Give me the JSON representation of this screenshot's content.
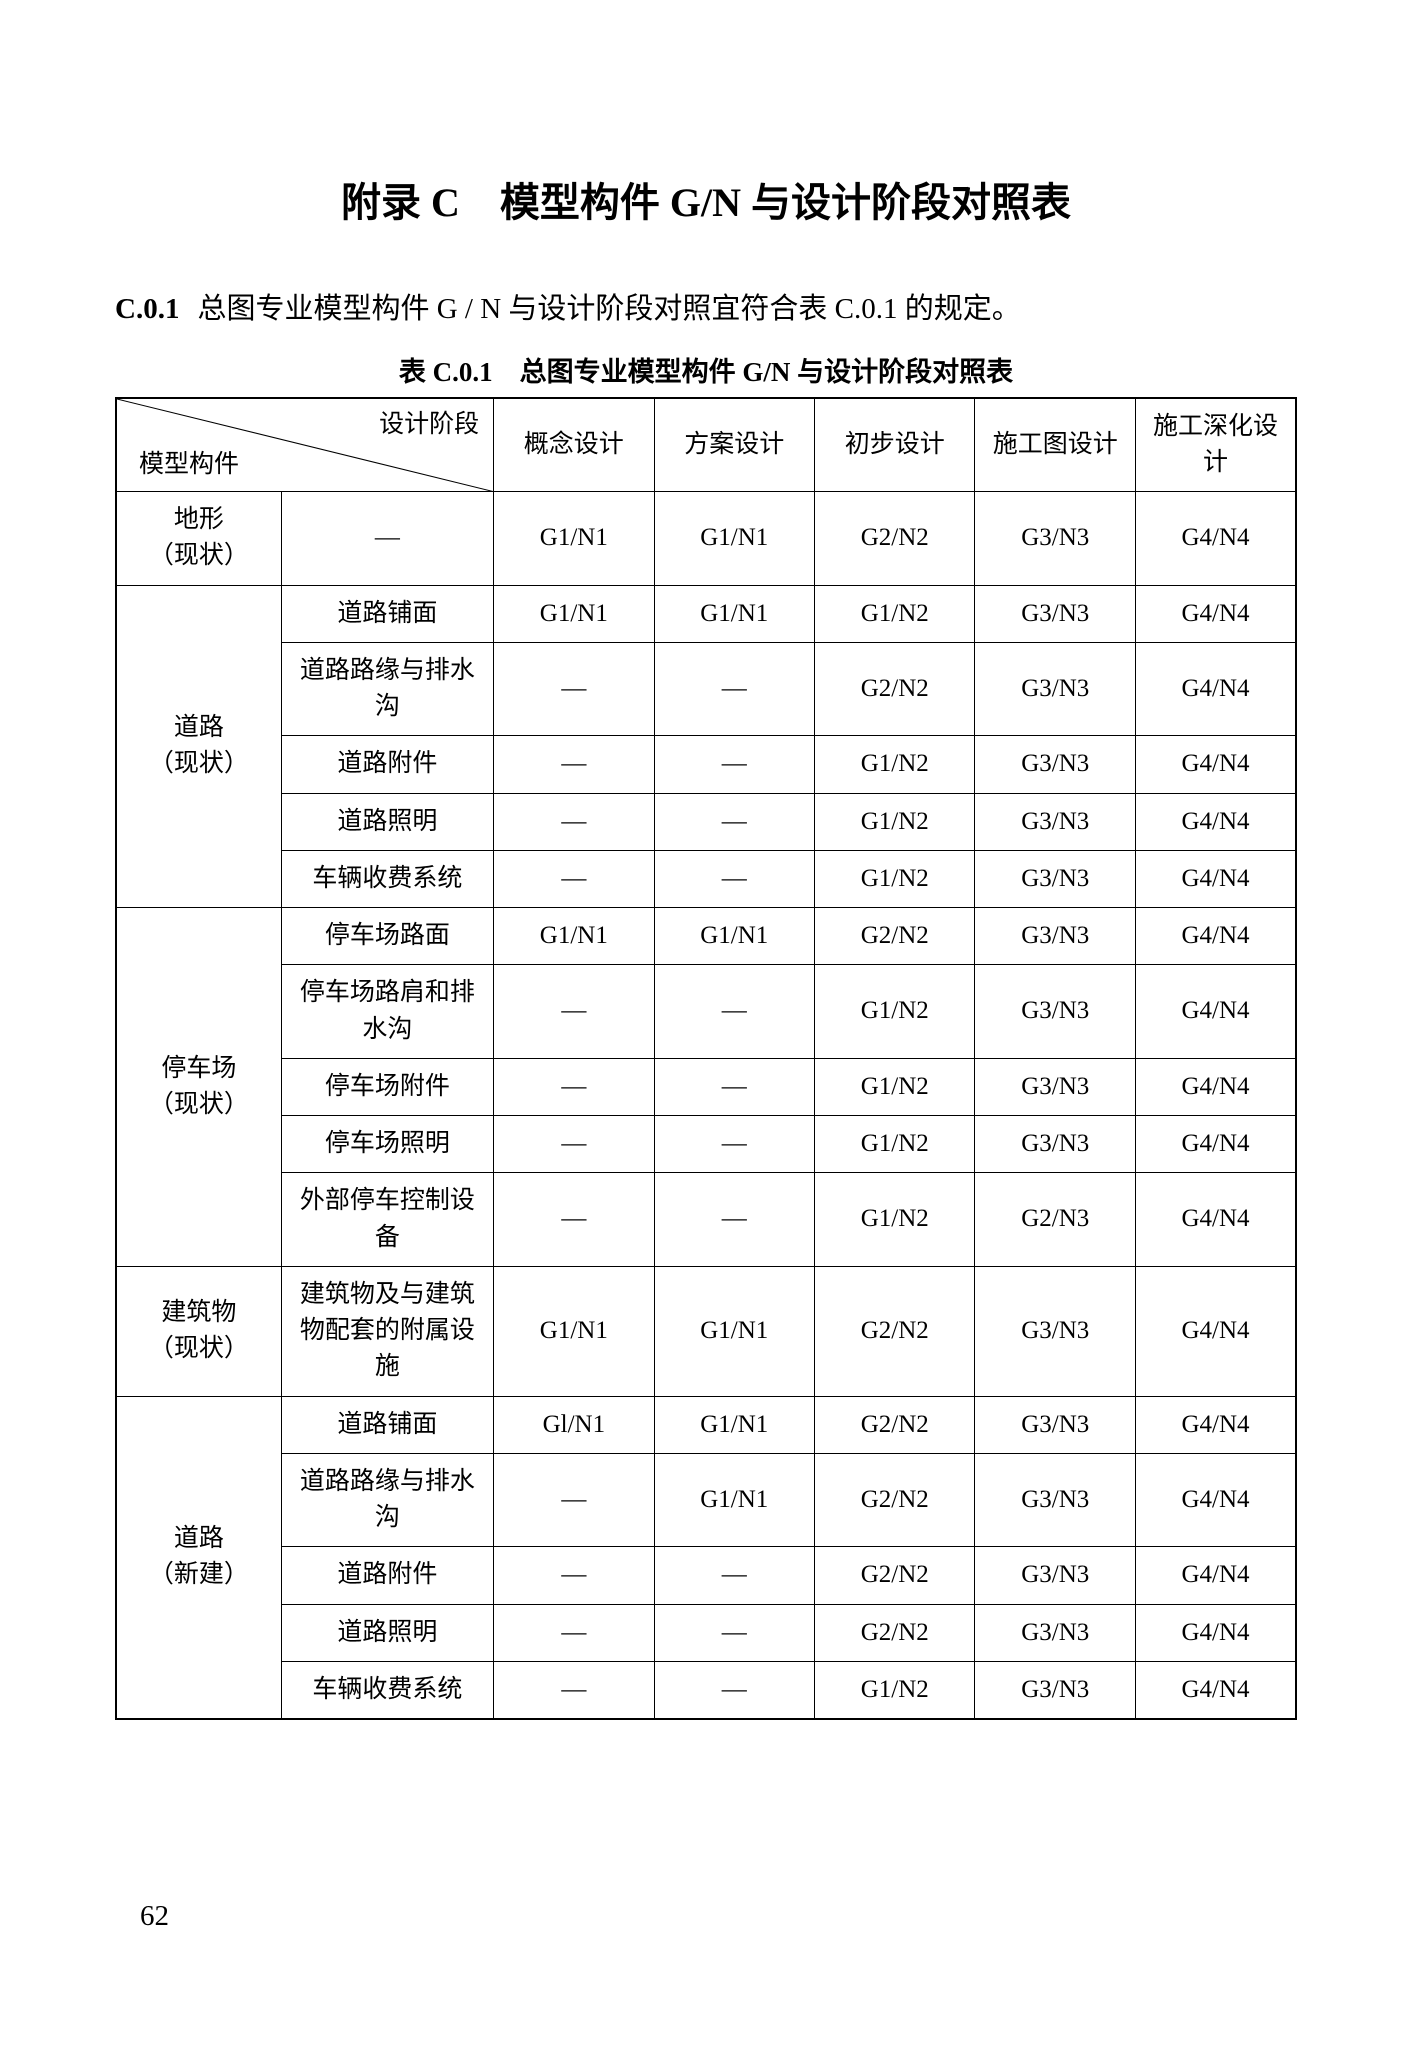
{
  "page": {
    "appendix_title": "附录 C　模型构件 G/N 与设计阶段对照表",
    "clause_num": "C.0.1",
    "intro_text": "总图专业模型构件 G / N 与设计阶段对照宜符合表 C.0.1 的规定。",
    "table_caption": "表 C.0.1　总图专业模型构件 G/N 与设计阶段对照表",
    "page_number": "62"
  },
  "table": {
    "diag_top": "设计阶段",
    "diag_bottom": "模型构件",
    "phase_headers": [
      "概念设计",
      "方案设计",
      "初步设计",
      "施工图设计",
      "施工深化设计"
    ],
    "groups": [
      {
        "category": "地形\n（现状）",
        "rows": [
          {
            "sub": "—",
            "cells": [
              "G1/N1",
              "G1/N1",
              "G2/N2",
              "G3/N3",
              "G4/N4"
            ]
          }
        ]
      },
      {
        "category": "道路\n（现状）",
        "rows": [
          {
            "sub": "道路铺面",
            "cells": [
              "G1/N1",
              "G1/N1",
              "G1/N2",
              "G3/N3",
              "G4/N4"
            ]
          },
          {
            "sub": "道路路缘与排水沟",
            "cells": [
              "—",
              "—",
              "G2/N2",
              "G3/N3",
              "G4/N4"
            ]
          },
          {
            "sub": "道路附件",
            "cells": [
              "—",
              "—",
              "G1/N2",
              "G3/N3",
              "G4/N4"
            ]
          },
          {
            "sub": "道路照明",
            "cells": [
              "—",
              "—",
              "G1/N2",
              "G3/N3",
              "G4/N4"
            ]
          },
          {
            "sub": "车辆收费系统",
            "cells": [
              "—",
              "—",
              "G1/N2",
              "G3/N3",
              "G4/N4"
            ]
          }
        ]
      },
      {
        "category": "停车场\n（现状）",
        "rows": [
          {
            "sub": "停车场路面",
            "cells": [
              "G1/N1",
              "G1/N1",
              "G2/N2",
              "G3/N3",
              "G4/N4"
            ]
          },
          {
            "sub": "停车场路肩和排水沟",
            "cells": [
              "—",
              "—",
              "G1/N2",
              "G3/N3",
              "G4/N4"
            ]
          },
          {
            "sub": "停车场附件",
            "cells": [
              "—",
              "—",
              "G1/N2",
              "G3/N3",
              "G4/N4"
            ]
          },
          {
            "sub": "停车场照明",
            "cells": [
              "—",
              "—",
              "G1/N2",
              "G3/N3",
              "G4/N4"
            ]
          },
          {
            "sub": "外部停车控制设备",
            "cells": [
              "—",
              "—",
              "G1/N2",
              "G2/N3",
              "G4/N4"
            ]
          }
        ]
      },
      {
        "category": "建筑物\n（现状）",
        "rows": [
          {
            "sub": "建筑物及与建筑物配套的附属设施",
            "cells": [
              "G1/N1",
              "G1/N1",
              "G2/N2",
              "G3/N3",
              "G4/N4"
            ]
          }
        ]
      },
      {
        "category": "道路\n（新建）",
        "rows": [
          {
            "sub": "道路铺面",
            "cells": [
              "Gl/N1",
              "G1/N1",
              "G2/N2",
              "G3/N3",
              "G4/N4"
            ]
          },
          {
            "sub": "道路路缘与排水沟",
            "cells": [
              "—",
              "G1/N1",
              "G2/N2",
              "G3/N3",
              "G4/N4"
            ]
          },
          {
            "sub": "道路附件",
            "cells": [
              "—",
              "—",
              "G2/N2",
              "G3/N3",
              "G4/N4"
            ]
          },
          {
            "sub": "道路照明",
            "cells": [
              "—",
              "—",
              "G2/N2",
              "G3/N3",
              "G4/N4"
            ]
          },
          {
            "sub": "车辆收费系统",
            "cells": [
              "—",
              "—",
              "G1/N2",
              "G3/N3",
              "G4/N4"
            ]
          }
        ]
      }
    ]
  },
  "style": {
    "text_color": "#000000",
    "bg_color": "#ffffff",
    "border_color": "#000000",
    "title_fontsize": 40,
    "body_fontsize": 25,
    "caption_fontsize": 27,
    "intro_fontsize": 29,
    "outer_border_width": 2.5,
    "inner_border_width": 1
  }
}
